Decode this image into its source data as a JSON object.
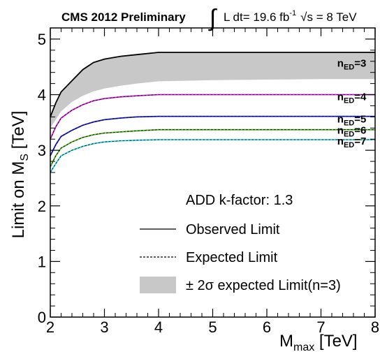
{
  "header": {
    "experiment": "CMS 2012 Preliminary",
    "lumi_text": "L dt= 19.6 fb",
    "lumi_exp": "-1",
    "energy_text": "s = 8 TeV",
    "integral": "∫",
    "sqrt": "√"
  },
  "chart_data": {
    "type": "line",
    "xlabel_main": "M",
    "xlabel_sub": "max",
    "xlabel_unit": " [TeV]",
    "ylabel_main": "Limit on M",
    "ylabel_sub": "S",
    "ylabel_unit": " [TeV]",
    "xlim": [
      2,
      8
    ],
    "ylim": [
      0,
      5.2
    ],
    "x_ticks": [
      2,
      3,
      4,
      5,
      6,
      7,
      8
    ],
    "y_ticks": [
      0,
      1,
      2,
      3,
      4,
      5
    ],
    "x_tick_labels": [
      "2",
      "3",
      "4",
      "5",
      "6",
      "7",
      "8"
    ],
    "y_tick_labels": [
      "0",
      "1",
      "2",
      "3",
      "4",
      "5"
    ],
    "x": [
      2.0,
      2.1,
      2.2,
      2.4,
      2.6,
      2.8,
      3.0,
      3.3,
      3.6,
      4.0,
      4.5,
      5.0,
      6.0,
      7.0,
      8.0
    ],
    "series": [
      {
        "color": "#000000",
        "label": "n",
        "label_sub": "ED",
        "label_value": "=3",
        "label_x": 7.3,
        "label_y": 4.5,
        "values": [
          3.6,
          3.85,
          4.05,
          4.25,
          4.45,
          4.58,
          4.64,
          4.69,
          4.72,
          4.76,
          4.76,
          4.76,
          4.76,
          4.76,
          4.76
        ]
      },
      {
        "color": "#e01ee0",
        "label": "n",
        "label_sub": "ED",
        "label_value": "=4",
        "label_x": 7.3,
        "label_y": 3.9,
        "values": [
          3.2,
          3.42,
          3.58,
          3.72,
          3.82,
          3.89,
          3.93,
          3.96,
          3.98,
          4.0,
          4.0,
          4.0,
          4.0,
          4.0,
          4.0
        ]
      },
      {
        "color": "#1a1ae0",
        "label": "n",
        "label_sub": "ED",
        "label_value": "=5",
        "label_x": 7.3,
        "label_y": 3.5,
        "values": [
          2.9,
          3.1,
          3.25,
          3.36,
          3.45,
          3.51,
          3.55,
          3.58,
          3.6,
          3.61,
          3.61,
          3.61,
          3.61,
          3.61,
          3.61
        ]
      },
      {
        "color": "#55b81e",
        "label": "n",
        "label_sub": "ED",
        "label_value": "=6",
        "label_x": 7.3,
        "label_y": 3.3,
        "values": [
          2.7,
          2.9,
          3.04,
          3.15,
          3.23,
          3.28,
          3.31,
          3.33,
          3.35,
          3.37,
          3.37,
          3.37,
          3.37,
          3.37,
          3.37
        ]
      },
      {
        "color": "#30e0e8",
        "label": "n",
        "label_sub": "ED",
        "label_value": "=7",
        "label_x": 7.3,
        "label_y": 3.1,
        "values": [
          2.6,
          2.76,
          2.9,
          3.0,
          3.07,
          3.12,
          3.15,
          3.17,
          3.18,
          3.19,
          3.19,
          3.19,
          3.19,
          3.19,
          3.19
        ]
      }
    ],
    "band": {
      "color": "#c8c8c8",
      "upper": [
        3.6,
        3.85,
        4.05,
        4.25,
        4.45,
        4.58,
        4.64,
        4.69,
        4.72,
        4.76,
        4.76,
        4.76,
        4.76,
        4.76,
        4.76
      ],
      "lower": [
        3.4,
        3.55,
        3.7,
        3.87,
        3.98,
        4.06,
        4.11,
        4.16,
        4.2,
        4.24,
        4.25,
        4.26,
        4.27,
        4.28,
        4.28
      ]
    },
    "legend": {
      "title": "ADD k-factor: 1.3",
      "observed": "Observed Limit",
      "expected": "Expected Limit",
      "band": "± 2σ expected Limit(n=3)"
    }
  }
}
